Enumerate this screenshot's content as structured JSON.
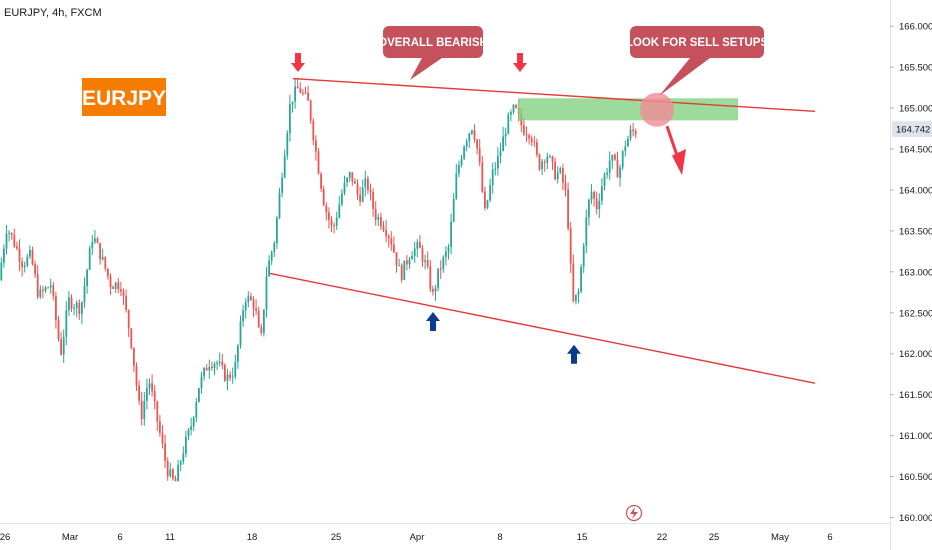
{
  "header": {
    "title": "EURJPY, 4h, FXCM"
  },
  "colors": {
    "up": "#26a69a",
    "down": "#ef5350",
    "trendline": "#e53935",
    "zone": "#7ccf7c",
    "callout": "#c4515b",
    "symbol_box": "#f57c00",
    "arrow_down": "#f23645",
    "arrow_up": "#0d3a91",
    "price_label_bg": "#e0e3eb"
  },
  "chart_data": {
    "type": "candlestick",
    "symbol": "EURJPY",
    "timeframe": "4h",
    "source": "FXCM",
    "x_ticks": [
      "26",
      "Mar",
      "6",
      "11",
      "18",
      "25",
      "Apr",
      "8",
      "15",
      "22",
      "25",
      "May",
      "6"
    ],
    "y_ticks": [
      "166.000",
      "165.500",
      "165.000",
      "164.500",
      "164.000",
      "163.500",
      "163.000",
      "162.500",
      "162.000",
      "161.500",
      "161.000",
      "160.500",
      "160.000"
    ],
    "ylim": [
      160.0,
      166.1
    ],
    "last_price": "164.742",
    "candle_keypoints": [
      [
        0,
        162.9
      ],
      [
        8,
        163.55
      ],
      [
        14,
        163.4
      ],
      [
        24,
        163.1
      ],
      [
        32,
        163.2
      ],
      [
        40,
        162.7
      ],
      [
        52,
        162.85
      ],
      [
        62,
        162.0
      ],
      [
        70,
        162.65
      ],
      [
        82,
        162.55
      ],
      [
        94,
        163.45
      ],
      [
        102,
        163.2
      ],
      [
        112,
        162.85
      ],
      [
        122,
        162.85
      ],
      [
        132,
        162.2
      ],
      [
        142,
        161.2
      ],
      [
        150,
        161.7
      ],
      [
        160,
        161.1
      ],
      [
        168,
        160.6
      ],
      [
        176,
        160.4
      ],
      [
        184,
        160.8
      ],
      [
        192,
        161.1
      ],
      [
        200,
        161.6
      ],
      [
        210,
        161.9
      ],
      [
        218,
        161.9
      ],
      [
        228,
        161.7
      ],
      [
        236,
        161.8
      ],
      [
        246,
        162.7
      ],
      [
        256,
        162.6
      ],
      [
        262,
        162.1
      ],
      [
        268,
        163.0
      ],
      [
        276,
        163.4
      ],
      [
        284,
        164.3
      ],
      [
        292,
        165.1
      ],
      [
        300,
        165.25
      ],
      [
        310,
        165.05
      ],
      [
        318,
        164.4
      ],
      [
        326,
        163.8
      ],
      [
        334,
        163.5
      ],
      [
        344,
        164.0
      ],
      [
        352,
        164.2
      ],
      [
        360,
        163.9
      ],
      [
        368,
        164.1
      ],
      [
        376,
        163.7
      ],
      [
        384,
        163.6
      ],
      [
        392,
        163.4
      ],
      [
        402,
        162.95
      ],
      [
        412,
        163.25
      ],
      [
        420,
        163.3
      ],
      [
        428,
        163.05
      ],
      [
        434,
        162.7
      ],
      [
        440,
        163.0
      ],
      [
        450,
        163.3
      ],
      [
        458,
        164.2
      ],
      [
        466,
        164.6
      ],
      [
        474,
        164.8
      ],
      [
        480,
        164.4
      ],
      [
        486,
        163.7
      ],
      [
        494,
        164.2
      ],
      [
        500,
        164.4
      ],
      [
        508,
        164.8
      ],
      [
        516,
        165.0
      ],
      [
        524,
        164.75
      ],
      [
        532,
        164.7
      ],
      [
        540,
        164.3
      ],
      [
        548,
        164.45
      ],
      [
        556,
        164.2
      ],
      [
        562,
        164.2
      ],
      [
        568,
        163.9
      ],
      [
        574,
        162.6
      ],
      [
        580,
        162.75
      ],
      [
        586,
        163.5
      ],
      [
        592,
        164.0
      ],
      [
        598,
        163.8
      ],
      [
        604,
        164.1
      ],
      [
        612,
        164.4
      ],
      [
        620,
        164.2
      ],
      [
        626,
        164.55
      ],
      [
        632,
        164.7
      ],
      [
        636,
        164.72
      ]
    ],
    "trendlines": [
      {
        "name": "upper",
        "from": [
          293,
          165.36
        ],
        "to": [
          815,
          164.96
        ]
      },
      {
        "name": "lower",
        "from": [
          270,
          162.98
        ],
        "to": [
          815,
          161.64
        ]
      }
    ],
    "zone": {
      "x1": 518,
      "x2": 738,
      "y_high": 165.12,
      "y_low": 164.85
    },
    "markers": [
      {
        "name": "arrow-down-1",
        "dir": "down",
        "x": 298,
        "price": 165.55
      },
      {
        "name": "arrow-down-2",
        "dir": "down",
        "x": 520,
        "price": 165.55
      },
      {
        "name": "arrow-up-1",
        "dir": "up",
        "x": 433,
        "price": 162.4
      },
      {
        "name": "arrow-up-2",
        "dir": "up",
        "x": 574,
        "price": 162.0
      }
    ]
  },
  "annotations": {
    "symbol_box": "EURJPY",
    "callout_bearish": "OVERALL BEARISH",
    "callout_sell": "LOOK FOR SELL SETUPS"
  },
  "icons": {
    "bottom": "lightning-icon"
  }
}
